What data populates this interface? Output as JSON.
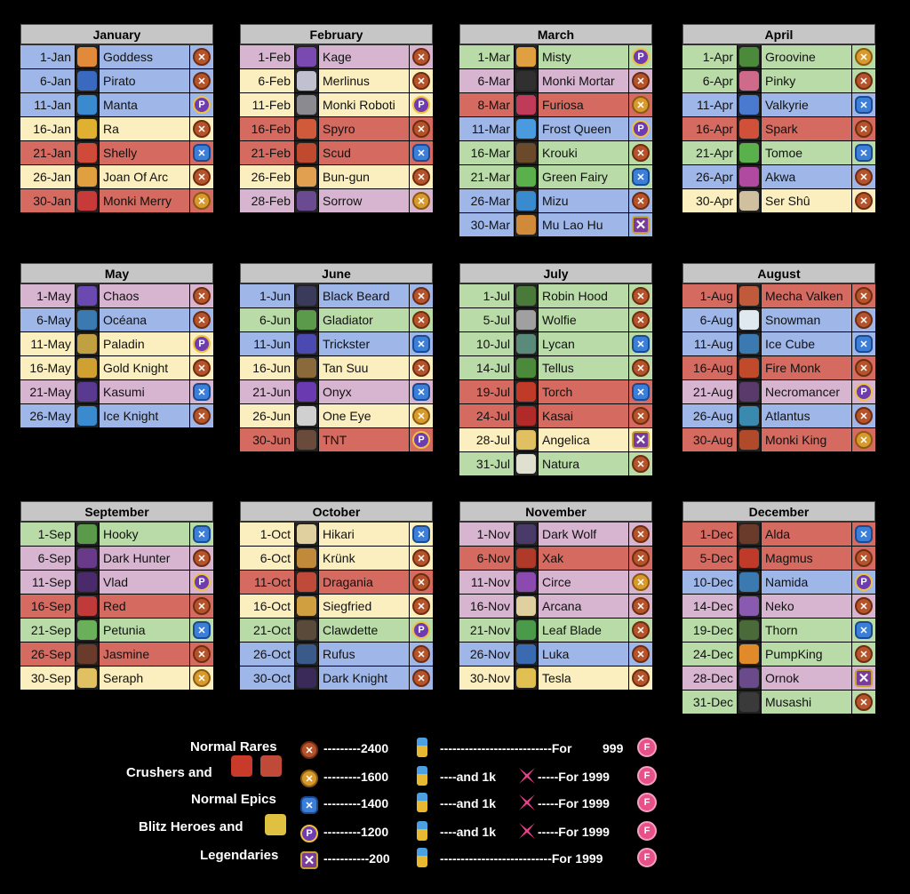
{
  "months": [
    {
      "name": "January",
      "rows": [
        {
          "date": "1-Jan",
          "hero": "Goddess",
          "color": "blue",
          "badge": "rare",
          "av": "#e08a3a"
        },
        {
          "date": "6-Jan",
          "hero": "Pirato",
          "color": "blue",
          "badge": "rare",
          "av": "#3a6ac0"
        },
        {
          "date": "11-Jan",
          "hero": "Manta",
          "color": "blue",
          "badge": "blitz",
          "av": "#3a8ad0"
        },
        {
          "date": "16-Jan",
          "hero": "Ra",
          "color": "yellow",
          "badge": "rare",
          "av": "#e0b030"
        },
        {
          "date": "21-Jan",
          "hero": "Shelly",
          "color": "red",
          "badge": "epic",
          "av": "#d04a3a"
        },
        {
          "date": "26-Jan",
          "hero": "Joan Of Arc",
          "color": "yellow",
          "badge": "rare",
          "av": "#e0a040"
        },
        {
          "date": "30-Jan",
          "hero": "Monki Merry",
          "color": "red",
          "badge": "crusher",
          "av": "#c83a3a"
        }
      ]
    },
    {
      "name": "February",
      "rows": [
        {
          "date": "1-Feb",
          "hero": "Kage",
          "color": "pink",
          "badge": "rare",
          "av": "#7a4ab0"
        },
        {
          "date": "6-Feb",
          "hero": "Merlinus",
          "color": "yellow",
          "badge": "rare",
          "av": "#c0c0d0"
        },
        {
          "date": "11-Feb",
          "hero": "Monki Roboti",
          "color": "yellow",
          "badge": "blitz",
          "av": "#8a8a90"
        },
        {
          "date": "16-Feb",
          "hero": "Spyro",
          "color": "red",
          "badge": "rare",
          "av": "#d05a3a"
        },
        {
          "date": "21-Feb",
          "hero": "Scud",
          "color": "red",
          "badge": "epic",
          "av": "#c04a30"
        },
        {
          "date": "26-Feb",
          "hero": "Bun-gun",
          "color": "yellow",
          "badge": "rare",
          "av": "#e0a050"
        },
        {
          "date": "28-Feb",
          "hero": "Sorrow",
          "color": "pink",
          "badge": "crusher",
          "av": "#6a4a90"
        }
      ]
    },
    {
      "name": "March",
      "rows": [
        {
          "date": "1-Mar",
          "hero": "Misty",
          "color": "green",
          "badge": "blitz",
          "av": "#e0a040"
        },
        {
          "date": "6-Mar",
          "hero": "Monki Mortar",
          "color": "pink",
          "badge": "rare",
          "av": "#303030"
        },
        {
          "date": "8-Mar",
          "hero": "Furiosa",
          "color": "red",
          "badge": "crusher",
          "av": "#c03a5a"
        },
        {
          "date": "11-Mar",
          "hero": "Frost Queen",
          "color": "blue",
          "badge": "blitz",
          "av": "#4a9ae0"
        },
        {
          "date": "16-Mar",
          "hero": "Krouki",
          "color": "green",
          "badge": "rare",
          "av": "#6a4a2a"
        },
        {
          "date": "21-Mar",
          "hero": "Green Fairy",
          "color": "green",
          "badge": "epic",
          "av": "#5ab04a"
        },
        {
          "date": "26-Mar",
          "hero": "Mizu",
          "color": "blue",
          "badge": "rare",
          "av": "#3a8ad0"
        },
        {
          "date": "30-Mar",
          "hero": "Mu Lao Hu",
          "color": "blue",
          "badge": "legend",
          "av": "#d08a3a"
        }
      ]
    },
    {
      "name": "April",
      "rows": [
        {
          "date": "1-Apr",
          "hero": "Groovine",
          "color": "green",
          "badge": "crusher",
          "av": "#4a8a3a"
        },
        {
          "date": "6-Apr",
          "hero": "Pinky",
          "color": "green",
          "badge": "rare",
          "av": "#d06a8a"
        },
        {
          "date": "11-Apr",
          "hero": "Valkyrie",
          "color": "blue",
          "badge": "epic",
          "av": "#4a7ad0"
        },
        {
          "date": "16-Apr",
          "hero": "Spark",
          "color": "red",
          "badge": "rare",
          "av": "#d0503a"
        },
        {
          "date": "21-Apr",
          "hero": "Tomoe",
          "color": "green",
          "badge": "epic",
          "av": "#5ab04a"
        },
        {
          "date": "26-Apr",
          "hero": "Akwa",
          "color": "blue",
          "badge": "rare",
          "av": "#b04aa0"
        },
        {
          "date": "30-Apr",
          "hero": "Ser Shû",
          "color": "yellow",
          "badge": "rare",
          "av": "#d0c0a0"
        }
      ]
    },
    {
      "name": "May",
      "rows": [
        {
          "date": "1-May",
          "hero": "Chaos",
          "color": "pink",
          "badge": "rare",
          "av": "#6a4ab0"
        },
        {
          "date": "6-May",
          "hero": "Océana",
          "color": "blue",
          "badge": "rare",
          "av": "#3a7ab0"
        },
        {
          "date": "11-May",
          "hero": "Paladin",
          "color": "yellow",
          "badge": "blitz",
          "av": "#c0a040"
        },
        {
          "date": "16-May",
          "hero": "Gold Knight",
          "color": "yellow",
          "badge": "rare",
          "av": "#d0a030"
        },
        {
          "date": "21-May",
          "hero": "Kasumi",
          "color": "pink",
          "badge": "epic",
          "av": "#5a3a90"
        },
        {
          "date": "26-May",
          "hero": "Ice Knight",
          "color": "blue",
          "badge": "rare",
          "av": "#3a8ad0"
        }
      ]
    },
    {
      "name": "June",
      "rows": [
        {
          "date": "1-Jun",
          "hero": "Black Beard",
          "color": "blue",
          "badge": "rare",
          "av": "#3a3a5a"
        },
        {
          "date": "6-Jun",
          "hero": "Gladiator",
          "color": "green",
          "badge": "rare",
          "av": "#5a9a4a"
        },
        {
          "date": "11-Jun",
          "hero": "Trickster",
          "color": "blue",
          "badge": "epic",
          "av": "#4a4ab0"
        },
        {
          "date": "16-Jun",
          "hero": "Tan Suu",
          "color": "yellow",
          "badge": "rare",
          "av": "#8a6a3a"
        },
        {
          "date": "21-Jun",
          "hero": "Onyx",
          "color": "pink",
          "badge": "epic",
          "av": "#6a3ab0"
        },
        {
          "date": "26-Jun",
          "hero": "One Eye",
          "color": "yellow",
          "badge": "crusher",
          "av": "#d0d0d0"
        },
        {
          "date": "30-Jun",
          "hero": "TNT",
          "color": "red",
          "badge": "blitz",
          "av": "#6a4a3a"
        }
      ]
    },
    {
      "name": "July",
      "rows": [
        {
          "date": "1-Jul",
          "hero": "Robin Hood",
          "color": "green",
          "badge": "rare",
          "av": "#4a7a3a"
        },
        {
          "date": "5-Jul",
          "hero": "Wolfie",
          "color": "green",
          "badge": "rare",
          "av": "#a0a0a0"
        },
        {
          "date": "10-Jul",
          "hero": "Lycan",
          "color": "green",
          "badge": "epic",
          "av": "#5a8a7a"
        },
        {
          "date": "14-Jul",
          "hero": "Tellus",
          "color": "green",
          "badge": "rare",
          "av": "#4a8a3a"
        },
        {
          "date": "19-Jul",
          "hero": "Torch",
          "color": "red",
          "badge": "epic",
          "av": "#c03a2a"
        },
        {
          "date": "24-Jul",
          "hero": "Kasai",
          "color": "red",
          "badge": "rare",
          "av": "#b02a2a"
        },
        {
          "date": "28-Jul",
          "hero": "Angelica",
          "color": "yellow",
          "badge": "legend",
          "av": "#e0c060"
        },
        {
          "date": "31-Jul",
          "hero": "Natura",
          "color": "green",
          "badge": "rare",
          "av": "#e0e0d0"
        }
      ]
    },
    {
      "name": "August",
      "rows": [
        {
          "date": "1-Aug",
          "hero": "Mecha Valken",
          "color": "red",
          "badge": "rare",
          "av": "#c05a3a"
        },
        {
          "date": "6-Aug",
          "hero": "Snowman",
          "color": "blue",
          "badge": "rare",
          "av": "#e0e8f0"
        },
        {
          "date": "11-Aug",
          "hero": "Ice Cube",
          "color": "blue",
          "badge": "epic",
          "av": "#3a7ab0"
        },
        {
          "date": "16-Aug",
          "hero": "Fire Monk",
          "color": "red",
          "badge": "rare",
          "av": "#c04a2a"
        },
        {
          "date": "21-Aug",
          "hero": "Necromancer",
          "color": "pink",
          "badge": "blitz",
          "av": "#5a3a6a"
        },
        {
          "date": "26-Aug",
          "hero": "Atlantus",
          "color": "blue",
          "badge": "rare",
          "av": "#3a8ab0"
        },
        {
          "date": "30-Aug",
          "hero": "Monki King",
          "color": "red",
          "badge": "crusher",
          "av": "#b04a2a"
        }
      ]
    },
    {
      "name": "September",
      "rows": [
        {
          "date": "1-Sep",
          "hero": "Hooky",
          "color": "green",
          "badge": "epic",
          "av": "#5a9a4a"
        },
        {
          "date": "6-Sep",
          "hero": "Dark Hunter",
          "color": "pink",
          "badge": "rare",
          "av": "#6a3a8a"
        },
        {
          "date": "11-Sep",
          "hero": "Vlad",
          "color": "pink",
          "badge": "blitz",
          "av": "#4a2a6a"
        },
        {
          "date": "16-Sep",
          "hero": "Red",
          "color": "red",
          "badge": "rare",
          "av": "#c03a3a"
        },
        {
          "date": "21-Sep",
          "hero": "Petunia",
          "color": "green",
          "badge": "epic",
          "av": "#6ab05a"
        },
        {
          "date": "26-Sep",
          "hero": "Jasmine",
          "color": "red",
          "badge": "rare",
          "av": "#6a3a2a"
        },
        {
          "date": "30-Sep",
          "hero": "Seraph",
          "color": "yellow",
          "badge": "crusher",
          "av": "#e0c060"
        }
      ]
    },
    {
      "name": "October",
      "rows": [
        {
          "date": "1-Oct",
          "hero": "Hikari",
          "color": "yellow",
          "badge": "epic",
          "av": "#e0d0a0"
        },
        {
          "date": "6-Oct",
          "hero": "Krünk",
          "color": "yellow",
          "badge": "rare",
          "av": "#c08a3a"
        },
        {
          "date": "11-Oct",
          "hero": "Dragania",
          "color": "red",
          "badge": "rare",
          "av": "#c04a3a"
        },
        {
          "date": "16-Oct",
          "hero": "Siegfried",
          "color": "yellow",
          "badge": "rare",
          "av": "#d0a040"
        },
        {
          "date": "21-Oct",
          "hero": "Clawdette",
          "color": "green",
          "badge": "blitz",
          "av": "#5a4a3a"
        },
        {
          "date": "26-Oct",
          "hero": "Rufus",
          "color": "blue",
          "badge": "rare",
          "av": "#3a5a8a"
        },
        {
          "date": "30-Oct",
          "hero": "Dark Knight",
          "color": "blue",
          "badge": "rare",
          "av": "#3a2a5a"
        }
      ]
    },
    {
      "name": "November",
      "rows": [
        {
          "date": "1-Nov",
          "hero": "Dark Wolf",
          "color": "pink",
          "badge": "rare",
          "av": "#4a3a6a"
        },
        {
          "date": "6-Nov",
          "hero": "Xak",
          "color": "red",
          "badge": "rare",
          "av": "#b03a2a"
        },
        {
          "date": "11-Nov",
          "hero": "Circe",
          "color": "pink",
          "badge": "crusher",
          "av": "#8a4ab0"
        },
        {
          "date": "16-Nov",
          "hero": "Arcana",
          "color": "pink",
          "badge": "rare",
          "av": "#e0d0a0"
        },
        {
          "date": "21-Nov",
          "hero": "Leaf Blade",
          "color": "green",
          "badge": "rare",
          "av": "#4a9a4a"
        },
        {
          "date": "26-Nov",
          "hero": "Luka",
          "color": "blue",
          "badge": "rare",
          "av": "#3a6ab0"
        },
        {
          "date": "30-Nov",
          "hero": "Tesla",
          "color": "yellow",
          "badge": "rare",
          "av": "#e0c050"
        }
      ]
    },
    {
      "name": "December",
      "rows": [
        {
          "date": "1-Dec",
          "hero": "Alda",
          "color": "red",
          "badge": "epic",
          "av": "#6a3a2a"
        },
        {
          "date": "5-Dec",
          "hero": "Magmus",
          "color": "red",
          "badge": "rare",
          "av": "#c03a2a"
        },
        {
          "date": "10-Dec",
          "hero": "Namida",
          "color": "blue",
          "badge": "blitz",
          "av": "#3a7ab0"
        },
        {
          "date": "14-Dec",
          "hero": "Neko",
          "color": "pink",
          "badge": "rare",
          "av": "#8a5ab0"
        },
        {
          "date": "19-Dec",
          "hero": "Thorn",
          "color": "green",
          "badge": "epic",
          "av": "#4a6a3a"
        },
        {
          "date": "24-Dec",
          "hero": "PumpKing",
          "color": "green",
          "badge": "rare",
          "av": "#e08a2a"
        },
        {
          "date": "28-Dec",
          "hero": "Ornok",
          "color": "pink",
          "badge": "legend",
          "av": "#6a4a8a"
        },
        {
          "date": "31-Dec",
          "hero": "Musashi",
          "color": "green",
          "badge": "rare",
          "av": "#3a3a3a"
        }
      ]
    }
  ],
  "legend": {
    "rows": [
      {
        "label": "Normal Rares",
        "dash1": "---------2400",
        "dash2": "---------------------------For",
        "price": "999",
        "badge": "rare",
        "shard": false
      },
      {
        "label": "Crushers and",
        "dash1": "---------1600",
        "dash2": "----and 1k",
        "dash3": "-----For 1999",
        "badge": "crusher",
        "shard": true,
        "heroes": true
      },
      {
        "label": "Normal Epics",
        "dash1": "---------1400",
        "dash2": "----and 1k",
        "dash3": "-----For 1999",
        "badge": "epic",
        "shard": true
      },
      {
        "label": "Blitz Heroes and",
        "dash1": "---------1200",
        "dash2": "----and 1k",
        "dash3": "-----For 1999",
        "badge": "blitz",
        "shard": true,
        "heroes1": true
      },
      {
        "label": "Legendaries",
        "dash1": "-----------200",
        "dash2": "---------------------------For 1999",
        "badge": "legend",
        "shard": false
      }
    ]
  },
  "badge_glyphs": {
    "rare": "✕",
    "crusher": "✕",
    "epic": "✕",
    "blitz": "P",
    "legend": "✕"
  },
  "coin_glyph": "F"
}
